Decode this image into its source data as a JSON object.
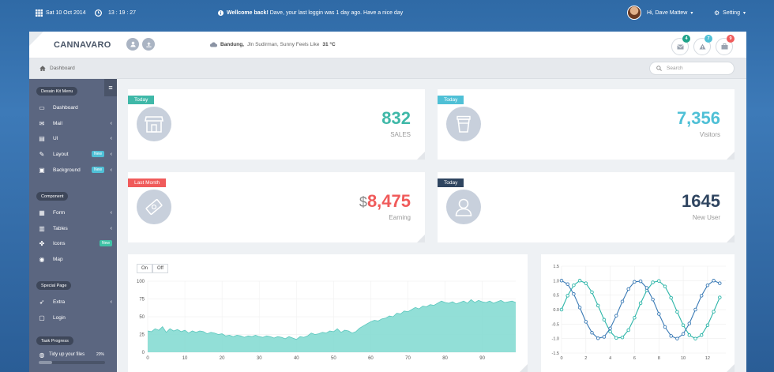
{
  "topbar": {
    "date": "Sat 10 Oct 2014",
    "time": "13 : 19 : 27",
    "welcome_bold": "Wellcome back!",
    "welcome_text": " Dave, your last loggin was 1 day ago. Have a nice day",
    "user": "Hi, Dave Mattew",
    "setting": "Setting",
    "caret": "▾"
  },
  "header": {
    "brand": "CANNAVARO",
    "weather_city": "Bandung,",
    "weather_text": "Jln Sudirman, Sunny Feels Like",
    "weather_temp": "31 °C",
    "notifications": [
      {
        "icon": "mail-icon",
        "count": "4",
        "color": "#1fa38a"
      },
      {
        "icon": "warning-icon",
        "count": "7",
        "color": "#4fc0d6"
      },
      {
        "icon": "briefcase-icon",
        "count": "9",
        "color": "#f05b5b"
      }
    ]
  },
  "breadcrumb": {
    "label": "Dashboard"
  },
  "search": {
    "placeholder": "Search"
  },
  "sidebar": {
    "sections": [
      {
        "title": "Desain Kit Menu"
      },
      {
        "title": "Component"
      },
      {
        "title": "Special Page"
      },
      {
        "title": "Task Progress"
      }
    ],
    "items": [
      {
        "label": "Dashboard",
        "icon": "monitor-icon"
      },
      {
        "label": "Mail",
        "icon": "mail-icon"
      },
      {
        "label": "UI",
        "icon": "document-icon"
      },
      {
        "label": "Layout",
        "icon": "pencil-icon",
        "badge": "New"
      },
      {
        "label": "Background",
        "icon": "image-icon",
        "badge": "New"
      },
      {
        "label": "Form",
        "icon": "grid-icon"
      },
      {
        "label": "Tables",
        "icon": "calendar-icon"
      },
      {
        "label": "Icons",
        "icon": "puzzle-icon",
        "badge": "New"
      },
      {
        "label": "Map",
        "icon": "map-pin-icon"
      },
      {
        "label": "Extra",
        "icon": "rocket-icon"
      },
      {
        "label": "Login",
        "icon": "lock-icon"
      }
    ],
    "task": {
      "label": "Tidy up your files",
      "percent": "20%",
      "progress": 0.2
    }
  },
  "stats": [
    {
      "tag": "Today",
      "tag_color": "#3fb8a8",
      "value": "832",
      "value_color": "#3fb8a8",
      "label": "SALES",
      "icon": "shop-icon"
    },
    {
      "tag": "Today",
      "tag_color": "#4fc0d6",
      "value": "7,356",
      "value_color": "#4fc0d6",
      "label": "Visitors",
      "icon": "cup-icon"
    },
    {
      "tag": "Last Month",
      "tag_color": "#f05b5b",
      "prefix": "$",
      "value": "8,475",
      "value_color": "#f05b5b",
      "label": "Earning",
      "icon": "money-icon"
    },
    {
      "tag": "Today",
      "tag_color": "#2f4560",
      "value": "1645",
      "value_color": "#2f4560",
      "label": "New User",
      "icon": "user-icon"
    }
  ],
  "area_chart_controls": {
    "on": "On",
    "off": "Off"
  },
  "chart_data": [
    {
      "type": "area",
      "x": [
        0,
        1,
        2,
        3,
        4,
        5,
        6,
        7,
        8,
        9,
        10,
        11,
        12,
        13,
        14,
        15,
        16,
        17,
        18,
        19,
        20,
        21,
        22,
        23,
        24,
        25,
        26,
        27,
        28,
        29,
        30,
        31,
        32,
        33,
        34,
        35,
        36,
        37,
        38,
        39,
        40,
        41,
        42,
        43,
        44,
        45,
        46,
        47,
        48,
        49,
        50,
        51,
        52,
        53,
        54,
        55,
        56,
        57,
        58,
        59,
        60,
        61,
        62,
        63,
        64,
        65,
        66,
        67,
        68,
        69,
        70,
        71,
        72,
        73,
        74,
        75,
        76,
        77,
        78,
        79,
        80,
        81,
        82,
        83,
        84,
        85,
        86,
        87,
        88,
        89,
        90,
        91,
        92,
        93,
        94,
        95,
        96,
        97,
        98,
        99
      ],
      "values": [
        30,
        29,
        33,
        31,
        36,
        28,
        33,
        30,
        32,
        29,
        31,
        27,
        30,
        28,
        30,
        29,
        26,
        28,
        27,
        25,
        26,
        23,
        24,
        22,
        24,
        23,
        21,
        23,
        22,
        24,
        22,
        21,
        23,
        22,
        20,
        22,
        21,
        19,
        22,
        20,
        18,
        22,
        21,
        23,
        27,
        25,
        26,
        28,
        27,
        30,
        29,
        33,
        28,
        31,
        30,
        27,
        29,
        34,
        37,
        40,
        43,
        45,
        44,
        47,
        48,
        51,
        50,
        55,
        54,
        58,
        57,
        60,
        63,
        61,
        65,
        64,
        67,
        66,
        69,
        72,
        70,
        69,
        71,
        68,
        70,
        72,
        69,
        74,
        70,
        73,
        71,
        70,
        72,
        69,
        71,
        73,
        70,
        71,
        72,
        70
      ],
      "xticks": [
        0,
        10,
        20,
        30,
        40,
        50,
        60,
        70,
        80,
        90
      ],
      "yticks": [
        0,
        25,
        50,
        75,
        100
      ],
      "ylim": [
        0,
        100
      ],
      "color": "#7fd9d0"
    },
    {
      "type": "line",
      "xticks": [
        0,
        2,
        4,
        6,
        8,
        10,
        12
      ],
      "yticks": [
        -1.5,
        -1.0,
        -0.5,
        0.0,
        0.5,
        1.0,
        1.5
      ],
      "ylim": [
        -1.5,
        1.5
      ],
      "xlim": [
        0,
        13.5
      ],
      "series": [
        {
          "function": "sin",
          "color": "#2cb5a8",
          "x": [
            0,
            0.5,
            1,
            1.5,
            2,
            2.5,
            3,
            3.5,
            4,
            4.5,
            5,
            5.5,
            6,
            6.5,
            7,
            7.5,
            8,
            8.5,
            9,
            9.5,
            10,
            10.5,
            11,
            11.5,
            12,
            12.5,
            13
          ],
          "values": [
            0,
            0.48,
            0.84,
            1.0,
            0.91,
            0.6,
            0.14,
            -0.35,
            -0.76,
            -0.98,
            -0.96,
            -0.71,
            -0.28,
            0.22,
            0.66,
            0.94,
            0.99,
            0.8,
            0.41,
            -0.08,
            -0.54,
            -0.88,
            -1.0,
            -0.88,
            -0.54,
            -0.07,
            0.42
          ]
        },
        {
          "function": "cos",
          "color": "#3a7ab5",
          "x": [
            0,
            0.5,
            1,
            1.5,
            2,
            2.5,
            3,
            3.5,
            4,
            4.5,
            5,
            5.5,
            6,
            6.5,
            7,
            7.5,
            8,
            8.5,
            9,
            9.5,
            10,
            10.5,
            11,
            11.5,
            12,
            12.5,
            13
          ],
          "values": [
            1.0,
            0.88,
            0.54,
            0.07,
            -0.42,
            -0.8,
            -0.99,
            -0.94,
            -0.65,
            -0.21,
            0.28,
            0.71,
            0.96,
            0.98,
            0.75,
            0.35,
            -0.15,
            -0.6,
            -0.91,
            -1.0,
            -0.84,
            -0.48,
            0.0,
            0.48,
            0.84,
            1.0,
            0.91
          ]
        }
      ]
    }
  ]
}
